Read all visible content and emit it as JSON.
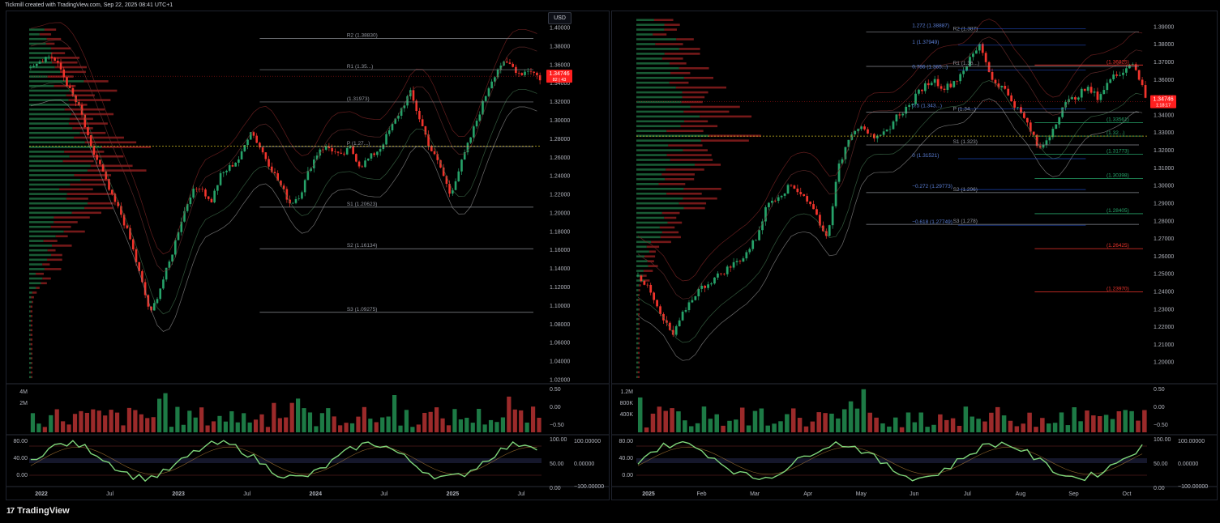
{
  "header": {
    "text": "Tickmill created with TradingView.com, Sep 22, 2025 08:41 UTC+1"
  },
  "footer": {
    "brand": "TradingView",
    "logo_glyph": "17"
  },
  "colors": {
    "up": "#26a269",
    "down": "#f0342c",
    "bg": "#000000",
    "price_badge": "#ff1f1f",
    "poc": "#c9b623"
  },
  "currency_label": "USD",
  "chart_data": [
    {
      "type": "candlestick",
      "panel": "left",
      "timeframe_ticks": [
        "2022",
        "Jul",
        "2023",
        "Jul",
        "2024",
        "Jul",
        "2025",
        "Jul"
      ],
      "ylim": [
        1.02,
        1.4
      ],
      "y_ticks": [
        "1.40000",
        "1.38000",
        "1.36000",
        "1.34000",
        "1.32000",
        "1.30000",
        "1.28000",
        "1.26000",
        "1.24000",
        "1.22000",
        "1.20000",
        "1.18000",
        "1.16000",
        "1.14000",
        "1.12000",
        "1.10000",
        "1.08000",
        "1.06000",
        "1.04000",
        "1.02000"
      ],
      "last_price": {
        "value": 1.34746,
        "label": "1.34746",
        "sub_label": "82 | 43"
      },
      "price_path": [
        1.36,
        1.365,
        1.37,
        1.355,
        1.33,
        1.31,
        1.27,
        1.25,
        1.22,
        1.2,
        1.17,
        1.13,
        1.09,
        1.12,
        1.15,
        1.19,
        1.22,
        1.23,
        1.21,
        1.24,
        1.25,
        1.26,
        1.29,
        1.27,
        1.25,
        1.23,
        1.21,
        1.22,
        1.25,
        1.27,
        1.27,
        1.26,
        1.27,
        1.25,
        1.26,
        1.27,
        1.29,
        1.31,
        1.33,
        1.3,
        1.27,
        1.25,
        1.22,
        1.25,
        1.28,
        1.31,
        1.34,
        1.36,
        1.36,
        1.35,
        1.355,
        1.345
      ],
      "pivots": [
        {
          "label": "R2 (1.38830)",
          "value": 1.3883
        },
        {
          "label": "R1 (1.35...)",
          "value": 1.3545
        },
        {
          "label": "(1.31973)",
          "value": 1.3197
        },
        {
          "label": "P (1.27...)",
          "value": 1.2716
        },
        {
          "label": "S1 (1.20623)",
          "value": 1.2062
        },
        {
          "label": "S2 (1.16134)",
          "value": 1.1613
        },
        {
          "label": "S3 (1.09275)",
          "value": 1.0927
        }
      ],
      "volume": {
        "y_ticks": [
          "4M",
          "2M"
        ],
        "right_ticks": [
          "0.50",
          "0.00",
          "−0.50"
        ]
      },
      "oscillator": {
        "y_ticks": [
          "80.00",
          "40.00",
          "0.00"
        ],
        "right_ticks": [
          "100.00",
          "50.00",
          "0.00"
        ],
        "far_right_ticks": [
          "100.00000",
          "0.00000",
          "−100.00000"
        ]
      }
    },
    {
      "type": "candlestick",
      "panel": "right",
      "timeframe_ticks": [
        "2025",
        "Feb",
        "Mar",
        "Apr",
        "May",
        "Jun",
        "Jul",
        "Aug",
        "Sep",
        "Oct"
      ],
      "ylim": [
        1.19,
        1.395
      ],
      "y_ticks": [
        "1.39000",
        "1.38000",
        "1.37000",
        "1.36000",
        "1.35000",
        "1.34000",
        "1.33000",
        "1.32000",
        "1.31000",
        "1.30000",
        "1.29000",
        "1.28000",
        "1.27000",
        "1.26000",
        "1.25000",
        "1.24000",
        "1.23000",
        "1.22000",
        "1.21000",
        "1.20000"
      ],
      "last_price": {
        "value": 1.34746,
        "label": "1.34746",
        "sub_label": "1:18:17"
      },
      "price_path": [
        1.25,
        1.24,
        1.225,
        1.215,
        1.23,
        1.24,
        1.245,
        1.25,
        1.255,
        1.26,
        1.27,
        1.29,
        1.295,
        1.3,
        1.295,
        1.285,
        1.27,
        1.31,
        1.33,
        1.335,
        1.325,
        1.33,
        1.34,
        1.345,
        1.355,
        1.36,
        1.355,
        1.36,
        1.37,
        1.38,
        1.36,
        1.355,
        1.345,
        1.335,
        1.32,
        1.33,
        1.345,
        1.35,
        1.355,
        1.35,
        1.36,
        1.365,
        1.37,
        1.35
      ],
      "fib_levels": [
        {
          "label": "1.272 (1.38887)",
          "value": 1.3889
        },
        {
          "label": "1 (1.37949)",
          "value": 1.3795
        },
        {
          "label": "0.786 (1.365...)",
          "value": 1.3655
        },
        {
          "label": "0.5 (1.343...)",
          "value": 1.3435
        },
        {
          "label": "0 (1.31521)",
          "value": 1.3152
        },
        {
          "label": "−0.272 (1.29773)",
          "value": 1.2977
        },
        {
          "label": "−0.618 (1.27749)",
          "value": 1.2775
        }
      ],
      "pivots": [
        {
          "label": "R2 (1.387)",
          "value": 1.387
        },
        {
          "label": "R1 (1.36...)",
          "value": 1.3675
        },
        {
          "label": "P (1.34...)",
          "value": 1.3415
        },
        {
          "label": "S1 (1.323)",
          "value": 1.323
        },
        {
          "label": "S2 (1.296)",
          "value": 1.296
        },
        {
          "label": "S3 (1.278)",
          "value": 1.278
        }
      ],
      "right_levels": [
        {
          "label": "(1.36825)",
          "value": 1.36825,
          "color": "#f0342c"
        },
        {
          "label": "(1.33561)",
          "value": 1.3356,
          "color": "#26a269"
        },
        {
          "label": "(1.32...)",
          "value": 1.328,
          "color": "#26a269"
        },
        {
          "label": "(1.31773)",
          "value": 1.31773,
          "color": "#26a269"
        },
        {
          "label": "(1.30398)",
          "value": 1.30398,
          "color": "#26a269"
        },
        {
          "label": "(1.28405)",
          "value": 1.28405,
          "color": "#26a269"
        },
        {
          "label": "(1.26425)",
          "value": 1.26425,
          "color": "#f0342c"
        },
        {
          "label": "(1.23970)",
          "value": 1.2397,
          "color": "#f0342c"
        }
      ],
      "volume": {
        "y_ticks": [
          "1.2M",
          "800K",
          "400K"
        ],
        "right_ticks": [
          "0.50",
          "0.00",
          "−0.50"
        ]
      },
      "oscillator": {
        "y_ticks": [
          "80.00",
          "40.00",
          "0.00"
        ],
        "right_ticks": [
          "100.00",
          "50.00",
          "0.00"
        ],
        "far_right_ticks": [
          "100.00000",
          "0.00000",
          "−100.00000"
        ]
      }
    }
  ]
}
